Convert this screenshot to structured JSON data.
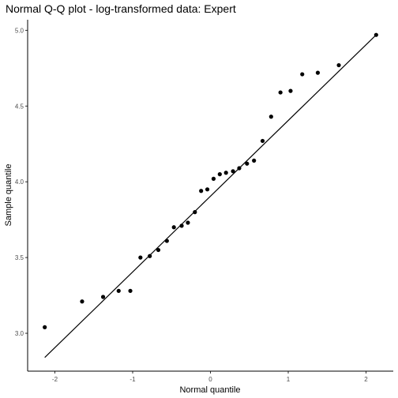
{
  "chart_data": {
    "type": "scatter",
    "title": "Normal Q-Q plot - log-transformed data: Expert",
    "xlabel": "Normal quantile",
    "ylabel": "Sample quantile",
    "xlim": [
      -2.35,
      2.35
    ],
    "ylim": [
      2.75,
      5.07
    ],
    "x_ticks": [
      -2,
      -1,
      0,
      1,
      2
    ],
    "x_tick_labels": [
      "-2",
      "-1",
      "0",
      "1",
      "2"
    ],
    "y_ticks": [
      3.0,
      3.5,
      4.0,
      4.5,
      5.0
    ],
    "y_tick_labels": [
      "3.0",
      "3.5",
      "4.0",
      "4.5",
      "5.0"
    ],
    "grid": false,
    "points": [
      {
        "x": -2.13,
        "y": 3.04
      },
      {
        "x": -1.65,
        "y": 3.21
      },
      {
        "x": -1.38,
        "y": 3.24
      },
      {
        "x": -1.18,
        "y": 3.28
      },
      {
        "x": -1.03,
        "y": 3.28
      },
      {
        "x": -0.9,
        "y": 3.5
      },
      {
        "x": -0.78,
        "y": 3.51
      },
      {
        "x": -0.67,
        "y": 3.55
      },
      {
        "x": -0.56,
        "y": 3.61
      },
      {
        "x": -0.47,
        "y": 3.7
      },
      {
        "x": -0.37,
        "y": 3.71
      },
      {
        "x": -0.29,
        "y": 3.73
      },
      {
        "x": -0.2,
        "y": 3.8
      },
      {
        "x": -0.12,
        "y": 3.94
      },
      {
        "x": -0.04,
        "y": 3.95
      },
      {
        "x": 0.04,
        "y": 4.02
      },
      {
        "x": 0.12,
        "y": 4.05
      },
      {
        "x": 0.2,
        "y": 4.06
      },
      {
        "x": 0.29,
        "y": 4.07
      },
      {
        "x": 0.37,
        "y": 4.09
      },
      {
        "x": 0.47,
        "y": 4.12
      },
      {
        "x": 0.56,
        "y": 4.14
      },
      {
        "x": 0.67,
        "y": 4.27
      },
      {
        "x": 0.78,
        "y": 4.43
      },
      {
        "x": 0.9,
        "y": 4.59
      },
      {
        "x": 1.03,
        "y": 4.6
      },
      {
        "x": 1.18,
        "y": 4.71
      },
      {
        "x": 1.38,
        "y": 4.72
      },
      {
        "x": 1.65,
        "y": 4.77
      },
      {
        "x": 2.13,
        "y": 4.97
      }
    ],
    "reference_line": {
      "x": [
        -2.13,
        2.13
      ],
      "y": [
        2.84,
        4.97
      ]
    }
  }
}
